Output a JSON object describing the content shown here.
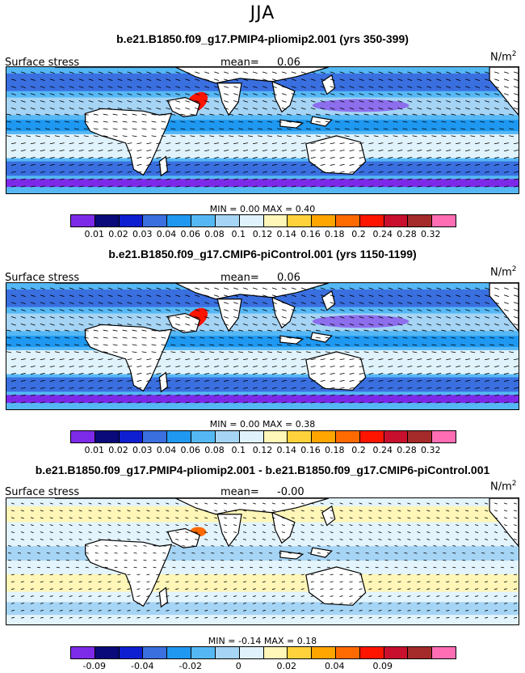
{
  "season": "JJA",
  "units": "N/m",
  "units_sup": "2",
  "panels": [
    {
      "title": "b.e21.B1850.f09_g17.PMIP4-pliomip2.001 (yrs 350-399)",
      "variable": "Surface stress",
      "mean_label": "mean=",
      "mean_value": "0.06",
      "stats": "MIN =    0.00  MAX =    0.40",
      "ticks": [
        "0.01",
        "0.02",
        "0.03",
        "0.04",
        "0.06",
        "0.08",
        "0.1",
        "0.12",
        "0.14",
        "0.16",
        "0.18",
        "0.2",
        "0.24",
        "0.28",
        "0.32"
      ],
      "colors": [
        "#7d2ae8",
        "#0a0a7a",
        "#0d1fd0",
        "#3a6fe0",
        "#1e98f0",
        "#55b8f5",
        "#a5d4f5",
        "#e0f3fc",
        "#fff6b8",
        "#ffd23b",
        "#ffa500",
        "#ff6a00",
        "#ff1400",
        "#c8102e",
        "#a52a2a",
        "#ff6eb4"
      ]
    },
    {
      "title": "b.e21.B1850.f09_g17.CMIP6-piControl.001 (yrs 1150-1199)",
      "variable": "Surface stress",
      "mean_label": "mean=",
      "mean_value": "0.06",
      "stats": "MIN =    0.00  MAX =    0.38",
      "ticks": [
        "0.01",
        "0.02",
        "0.03",
        "0.04",
        "0.06",
        "0.08",
        "0.1",
        "0.12",
        "0.14",
        "0.16",
        "0.18",
        "0.2",
        "0.24",
        "0.28",
        "0.32"
      ],
      "colors": [
        "#7d2ae8",
        "#0a0a7a",
        "#0d1fd0",
        "#3a6fe0",
        "#1e98f0",
        "#55b8f5",
        "#a5d4f5",
        "#e0f3fc",
        "#fff6b8",
        "#ffd23b",
        "#ffa500",
        "#ff6a00",
        "#ff1400",
        "#c8102e",
        "#a52a2a",
        "#ff6eb4"
      ]
    },
    {
      "title": "b.e21.B1850.f09_g17.PMIP4-pliomip2.001 - b.e21.B1850.f09_g17.CMIP6-piControl.001",
      "variable": "Surface stress",
      "mean_label": "mean=",
      "mean_value": "-0.00",
      "stats": "MIN =  -0.14  MAX =    0.18",
      "ticks": [
        "-0.09",
        "",
        "-0.04",
        "",
        "-0.02",
        "",
        "0",
        "",
        "0.02",
        "",
        "0.04",
        "",
        "0.09",
        "",
        ""
      ],
      "colors": [
        "#7d2ae8",
        "#0a0a7a",
        "#0d1fd0",
        "#3a6fe0",
        "#1e98f0",
        "#55b8f5",
        "#a5d4f5",
        "#e0f3fc",
        "#fff6b8",
        "#ffd23b",
        "#ffa500",
        "#ff6a00",
        "#ff1400",
        "#c8102e",
        "#a52a2a",
        "#ff6eb4"
      ]
    }
  ]
}
